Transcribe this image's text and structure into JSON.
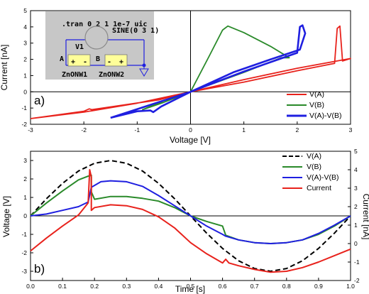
{
  "colors": {
    "red": "#e8221c",
    "green": "#2a8a2a",
    "blue": "#1f1fe0",
    "black": "#000000",
    "inset_bg": "#c7c7c7",
    "component_fill": "#ffff99"
  },
  "inset": {
    "title": ".tran 0 2 1 1e-7 uic",
    "source_name": "V1",
    "source_value": "SINE(0 3 1)",
    "node_a": "A",
    "node_b": "B",
    "device1": "ZnONW1",
    "device2": "ZnONW2",
    "pin_plus": "+",
    "pin_minus": "-"
  },
  "chart_data": [
    {
      "type": "line",
      "panel_label": "a)",
      "xlabel": "Voltage [V]",
      "ylabel": "Current [nA]",
      "xlim": [
        -3,
        3
      ],
      "ylim": [
        -2,
        5
      ],
      "x_ticks": [
        "-3",
        "-2",
        "-1",
        "0",
        "1",
        "2",
        "3"
      ],
      "y_ticks": [
        "-2",
        "-1",
        "0",
        "1",
        "2",
        "3",
        "4",
        "5"
      ],
      "legend_position": "bottom-right",
      "series": [
        {
          "name": "V(A)",
          "color": "red",
          "points": [
            [
              -3,
              -1.65
            ],
            [
              -2.0,
              -1.2
            ],
            [
              -1.9,
              -1.05
            ],
            [
              -1.85,
              -1.1
            ],
            [
              -0.6,
              -0.5
            ],
            [
              0,
              0
            ],
            [
              1.0,
              0.6
            ],
            [
              2.0,
              1.3
            ],
            [
              2.7,
              1.75
            ],
            [
              2.75,
              3.9
            ],
            [
              2.8,
              4.05
            ],
            [
              2.85,
              1.9
            ],
            [
              3,
              2.05
            ],
            [
              2.0,
              1.45
            ],
            [
              1.0,
              0.75
            ],
            [
              0,
              0
            ],
            [
              -1.0,
              -0.7
            ],
            [
              -2.0,
              -1.25
            ],
            [
              -3,
              -1.65
            ]
          ]
        },
        {
          "name": "V(B)",
          "color": "green",
          "points": [
            [
              0,
              0
            ],
            [
              0.35,
              2.2
            ],
            [
              0.6,
              3.8
            ],
            [
              0.7,
              4.05
            ],
            [
              1.0,
              3.65
            ],
            [
              1.5,
              2.8
            ],
            [
              1.85,
              2.1
            ],
            [
              1.7,
              2.1
            ],
            [
              1.0,
              1.2
            ],
            [
              0,
              0
            ],
            [
              -0.5,
              -0.55
            ],
            [
              -0.9,
              -1.1
            ],
            [
              -0.5,
              -0.65
            ],
            [
              0,
              0
            ]
          ]
        },
        {
          "name": "V(A)-V(B)",
          "color": "blue",
          "points": [
            [
              -1.5,
              -1.6
            ],
            [
              -1.0,
              -1.2
            ],
            [
              -0.75,
              -1.15
            ],
            [
              -0.7,
              -1.25
            ],
            [
              -0.55,
              -0.9
            ],
            [
              0,
              0
            ],
            [
              1.0,
              1.25
            ],
            [
              2.0,
              2.4
            ],
            [
              2.05,
              4.0
            ],
            [
              2.1,
              4.1
            ],
            [
              2.15,
              3.6
            ],
            [
              2.05,
              2.6
            ],
            [
              1.5,
              2.0
            ],
            [
              0.8,
              1.2
            ],
            [
              0,
              0
            ],
            [
              -0.7,
              -0.75
            ],
            [
              -1.5,
              -1.6
            ]
          ]
        }
      ]
    },
    {
      "type": "line",
      "panel_label": "b)",
      "xlabel": "Time [s]",
      "ylabel": "Voltage [V]",
      "ylabel_right": "Current [nA]",
      "xlim": [
        0,
        1
      ],
      "ylim": [
        -3.5,
        3.5
      ],
      "ylim_right": [
        -2,
        5
      ],
      "x_ticks": [
        "0.0",
        "0.1",
        "0.2",
        "0.3",
        "0.4",
        "0.5",
        "0.6",
        "0.7",
        "0.8",
        "0.9",
        "1.0"
      ],
      "y_ticks": [
        "-3",
        "-2",
        "-1",
        "0",
        "1",
        "2",
        "3"
      ],
      "y_ticks_right": [
        "-2",
        "-1",
        "0",
        "1",
        "2",
        "3",
        "4",
        "5"
      ],
      "legend_position": "top-right",
      "series": [
        {
          "name": "V(A)",
          "color": "black",
          "dashed": true,
          "points": [
            [
              0,
              0
            ],
            [
              0.05,
              0.93
            ],
            [
              0.1,
              1.76
            ],
            [
              0.15,
              2.43
            ],
            [
              0.2,
              2.85
            ],
            [
              0.25,
              3.0
            ],
            [
              0.3,
              2.85
            ],
            [
              0.35,
              2.43
            ],
            [
              0.4,
              1.76
            ],
            [
              0.45,
              0.93
            ],
            [
              0.5,
              0
            ],
            [
              0.55,
              -0.93
            ],
            [
              0.6,
              -1.76
            ],
            [
              0.65,
              -2.43
            ],
            [
              0.7,
              -2.85
            ],
            [
              0.75,
              -3.0
            ],
            [
              0.8,
              -2.85
            ],
            [
              0.85,
              -2.43
            ],
            [
              0.9,
              -1.76
            ],
            [
              0.95,
              -0.93
            ],
            [
              1.0,
              0
            ]
          ]
        },
        {
          "name": "V(B)",
          "color": "green",
          "points": [
            [
              0,
              0
            ],
            [
              0.05,
              0.7
            ],
            [
              0.1,
              1.35
            ],
            [
              0.15,
              1.95
            ],
            [
              0.18,
              2.15
            ],
            [
              0.19,
              2.2
            ],
            [
              0.19,
              1.3
            ],
            [
              0.2,
              0.9
            ],
            [
              0.25,
              1.05
            ],
            [
              0.3,
              1.05
            ],
            [
              0.35,
              0.95
            ],
            [
              0.4,
              0.8
            ],
            [
              0.45,
              0.45
            ],
            [
              0.5,
              0
            ],
            [
              0.55,
              -0.3
            ],
            [
              0.6,
              -0.55
            ],
            [
              0.61,
              -1.05
            ],
            [
              0.65,
              -1.3
            ],
            [
              0.7,
              -1.45
            ],
            [
              0.75,
              -1.5
            ],
            [
              0.8,
              -1.45
            ],
            [
              0.85,
              -1.3
            ],
            [
              0.9,
              -1.0
            ],
            [
              0.95,
              -0.55
            ],
            [
              1.0,
              0
            ]
          ]
        },
        {
          "name": "V(A)-V(B)",
          "color": "blue",
          "points": [
            [
              0,
              0
            ],
            [
              0.05,
              0.1
            ],
            [
              0.1,
              0.3
            ],
            [
              0.15,
              0.5
            ],
            [
              0.18,
              0.75
            ],
            [
              0.19,
              1.55
            ],
            [
              0.2,
              1.65
            ],
            [
              0.22,
              1.85
            ],
            [
              0.25,
              1.9
            ],
            [
              0.3,
              1.85
            ],
            [
              0.35,
              1.6
            ],
            [
              0.4,
              1.1
            ],
            [
              0.45,
              0.55
            ],
            [
              0.5,
              0
            ],
            [
              0.55,
              -0.55
            ],
            [
              0.6,
              -1.0
            ],
            [
              0.61,
              -1.1
            ],
            [
              0.65,
              -1.3
            ],
            [
              0.7,
              -1.45
            ],
            [
              0.75,
              -1.5
            ],
            [
              0.8,
              -1.45
            ],
            [
              0.85,
              -1.3
            ],
            [
              0.9,
              -0.95
            ],
            [
              0.95,
              -0.5
            ],
            [
              1.0,
              0
            ]
          ]
        },
        {
          "name": "Current",
          "color": "red",
          "axis": "right",
          "points": [
            [
              0,
              -0.4
            ],
            [
              0.05,
              0.3
            ],
            [
              0.1,
              0.95
            ],
            [
              0.15,
              1.55
            ],
            [
              0.18,
              2.2
            ],
            [
              0.185,
              4.0
            ],
            [
              0.19,
              3.6
            ],
            [
              0.19,
              1.8
            ],
            [
              0.2,
              1.95
            ],
            [
              0.25,
              2.1
            ],
            [
              0.3,
              2.05
            ],
            [
              0.35,
              1.85
            ],
            [
              0.4,
              1.45
            ],
            [
              0.45,
              0.85
            ],
            [
              0.5,
              0.05
            ],
            [
              0.55,
              -0.55
            ],
            [
              0.6,
              -1.05
            ],
            [
              0.61,
              -0.85
            ],
            [
              0.62,
              -1.05
            ],
            [
              0.65,
              -1.2
            ],
            [
              0.7,
              -1.4
            ],
            [
              0.75,
              -1.55
            ],
            [
              0.8,
              -1.5
            ],
            [
              0.85,
              -1.3
            ],
            [
              0.9,
              -1.0
            ],
            [
              0.95,
              -0.65
            ],
            [
              1.0,
              -0.3
            ]
          ]
        }
      ]
    }
  ]
}
